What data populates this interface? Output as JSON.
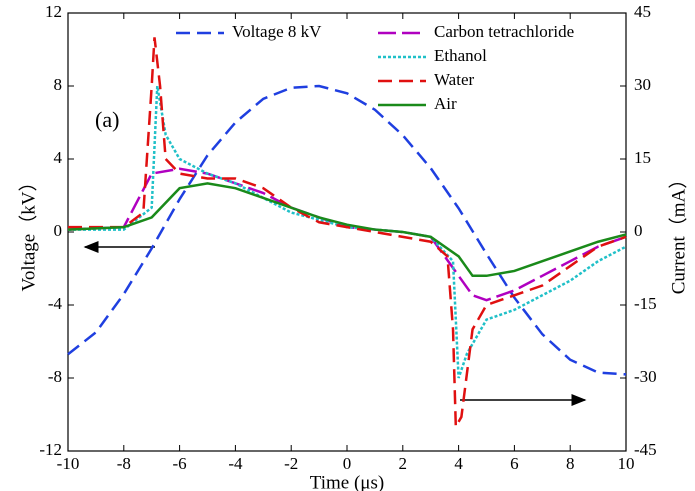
{
  "chart_data": {
    "type": "line",
    "xlabel": "Time (μs)",
    "ylabel": "Voltage（kV）",
    "y2label": "Current（mA）",
    "annotation": "(a)",
    "xlim": [
      -10,
      10
    ],
    "xticks": [
      -10,
      -8,
      -6,
      -4,
      -2,
      0,
      2,
      4,
      6,
      8,
      10
    ],
    "ylim": [
      -12,
      12
    ],
    "yticks": [
      -12,
      -8,
      -4,
      0,
      4,
      8,
      12
    ],
    "y2lim": [
      -45,
      45
    ],
    "y2ticks": [
      -45,
      -30,
      -15,
      0,
      15,
      30,
      45
    ],
    "series": [
      {
        "name": "Voltage 8 kV",
        "color": "#1f3fe0",
        "dash": "dashed",
        "axis": "y",
        "x": [
          -10,
          -9,
          -8,
          -7,
          -6,
          -5,
          -4,
          -3,
          -2,
          -1,
          0,
          1,
          2,
          3,
          4,
          5,
          6,
          7,
          8,
          9,
          10
        ],
        "values": [
          -6.7,
          -5.5,
          -3.4,
          -0.9,
          1.8,
          4.2,
          6.0,
          7.3,
          7.9,
          8.0,
          7.6,
          6.7,
          5.3,
          3.5,
          1.3,
          -1.2,
          -3.6,
          -5.6,
          -7.0,
          -7.7,
          -7.8
        ]
      },
      {
        "name": "Carbon tetrachloride",
        "color": "#b000c0",
        "dash": "longdash",
        "axis": "y2",
        "x": [
          -10,
          -8,
          -7,
          -6,
          -5,
          -4,
          -3,
          -2,
          0,
          2,
          3,
          4,
          4.5,
          5,
          6,
          7,
          8,
          9,
          10
        ],
        "values": [
          0.5,
          1,
          12,
          13,
          12,
          10,
          8,
          5,
          1,
          0,
          -1,
          -9,
          -13,
          -14,
          -12,
          -9,
          -6,
          -3,
          -1
        ]
      },
      {
        "name": "Ethanol",
        "color": "#20c0c8",
        "dash": "dotted",
        "axis": "y2",
        "x": [
          -10,
          -8,
          -7,
          -6.8,
          -6.5,
          -6,
          -5,
          -4,
          -3,
          -2,
          0,
          2,
          3,
          3.8,
          4,
          4.3,
          5,
          6,
          7,
          8,
          9,
          10
        ],
        "values": [
          0.5,
          0.5,
          5,
          30,
          20,
          15,
          12,
          10,
          7,
          4,
          1,
          0,
          -1,
          -6,
          -30,
          -25,
          -18,
          -16,
          -13,
          -10,
          -6,
          -3
        ]
      },
      {
        "name": "Water",
        "color": "#e01010",
        "dash": "dashed",
        "axis": "y2",
        "x": [
          -10,
          -8,
          -7.3,
          -7,
          -6.9,
          -6.7,
          -6.5,
          -6,
          -5,
          -4,
          -3,
          -2,
          -1,
          0,
          1,
          2,
          3,
          3.6,
          3.8,
          3.9,
          4.1,
          4.5,
          5,
          6,
          7,
          8,
          9,
          10
        ],
        "values": [
          1,
          1,
          4,
          30,
          40,
          30,
          15,
          12,
          11,
          11,
          9,
          5,
          2,
          1,
          0,
          -1,
          -2,
          -5,
          -20,
          -40,
          -38,
          -20,
          -15,
          -13,
          -11,
          -7,
          -3,
          -1
        ]
      },
      {
        "name": "Air",
        "color": "#1a8a1a",
        "dash": "solid",
        "axis": "y2",
        "x": [
          -10,
          -8,
          -7,
          -6,
          -5,
          -4,
          -3,
          -2,
          -1,
          0,
          1,
          2,
          3,
          4,
          4.5,
          5,
          6,
          7,
          8,
          9,
          10
        ],
        "values": [
          0.5,
          1,
          3,
          9,
          10,
          9,
          7,
          5,
          3,
          1.5,
          0.5,
          0,
          -1,
          -5,
          -9,
          -9,
          -8,
          -6,
          -4,
          -2,
          -0.5
        ]
      }
    ]
  }
}
